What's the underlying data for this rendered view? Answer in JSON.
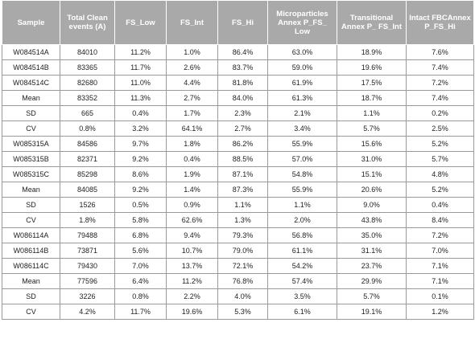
{
  "table": {
    "headers": [
      "Sample",
      "Total Clean events (A)",
      "FS_Low",
      "FS_Int",
      "FS_Hi",
      "Microparticles Annex P_FS_ Low",
      "Transitional Annex P_ FS_Int",
      "Intact FBCAnnex P_FS_Hi"
    ],
    "rows": [
      [
        "W084514A",
        "84010",
        "11.2%",
        "1.0%",
        "86.4%",
        "63.0%",
        "18.9%",
        "7.6%"
      ],
      [
        "W084514B",
        "83365",
        "11.7%",
        "2.6%",
        "83.7%",
        "59.0%",
        "19.6%",
        "7.4%"
      ],
      [
        "W084514C",
        "82680",
        "11.0%",
        "4.4%",
        "81.8%",
        "61.9%",
        "17.5%",
        "7.2%"
      ],
      [
        "Mean",
        "83352",
        "11.3%",
        "2.7%",
        "84.0%",
        "61.3%",
        "18.7%",
        "7.4%"
      ],
      [
        "SD",
        "665",
        "0.4%",
        "1.7%",
        "2.3%",
        "2.1%",
        "1.1%",
        "0.2%"
      ],
      [
        "CV",
        "0.8%",
        "3.2%",
        "64.1%",
        "2.7%",
        "3.4%",
        "5.7%",
        "2.5%"
      ],
      [
        "W085315A",
        "84586",
        "9.7%",
        "1.8%",
        "86.2%",
        "55.9%",
        "15.6%",
        "5.2%"
      ],
      [
        "W085315B",
        "82371",
        "9.2%",
        "0.4%",
        "88.5%",
        "57.0%",
        "31.0%",
        "5.7%"
      ],
      [
        "W085315C",
        "85298",
        "8.6%",
        "1.9%",
        "87.1%",
        "54.8%",
        "15.1%",
        "4.8%"
      ],
      [
        "Mean",
        "84085",
        "9.2%",
        "1.4%",
        "87.3%",
        "55.9%",
        "20.6%",
        "5.2%"
      ],
      [
        "SD",
        "1526",
        "0.5%",
        "0.9%",
        "1.1%",
        "1.1%",
        "9.0%",
        "0.4%"
      ],
      [
        "CV",
        "1.8%",
        "5.8%",
        "62.6%",
        "1.3%",
        "2.0%",
        "43.8%",
        "8.4%"
      ],
      [
        "W086114A",
        "79488",
        "6.8%",
        "9.4%",
        "79.3%",
        "56.8%",
        "35.0%",
        "7.2%"
      ],
      [
        "W086114B",
        "73871",
        "5.6%",
        "10.7%",
        "79.0%",
        "61.1%",
        "31.1%",
        "7.0%"
      ],
      [
        "W086114C",
        "79430",
        "7.0%",
        "13.7%",
        "72.1%",
        "54.2%",
        "23.7%",
        "7.1%"
      ],
      [
        "Mean",
        "77596",
        "6.4%",
        "11.2%",
        "76.8%",
        "57.4%",
        "29.9%",
        "7.1%"
      ],
      [
        "SD",
        "3226",
        "0.8%",
        "2.2%",
        "4.0%",
        "3.5%",
        "5.7%",
        "0.1%"
      ],
      [
        "CV",
        "4.2%",
        "11.7%",
        "19.6%",
        "5.3%",
        "6.1%",
        "19.1%",
        "1.2%"
      ]
    ]
  },
  "colors": {
    "header_bg": "#a9a9a9",
    "header_text": "#ffffff",
    "border": "#9a9a9a"
  }
}
